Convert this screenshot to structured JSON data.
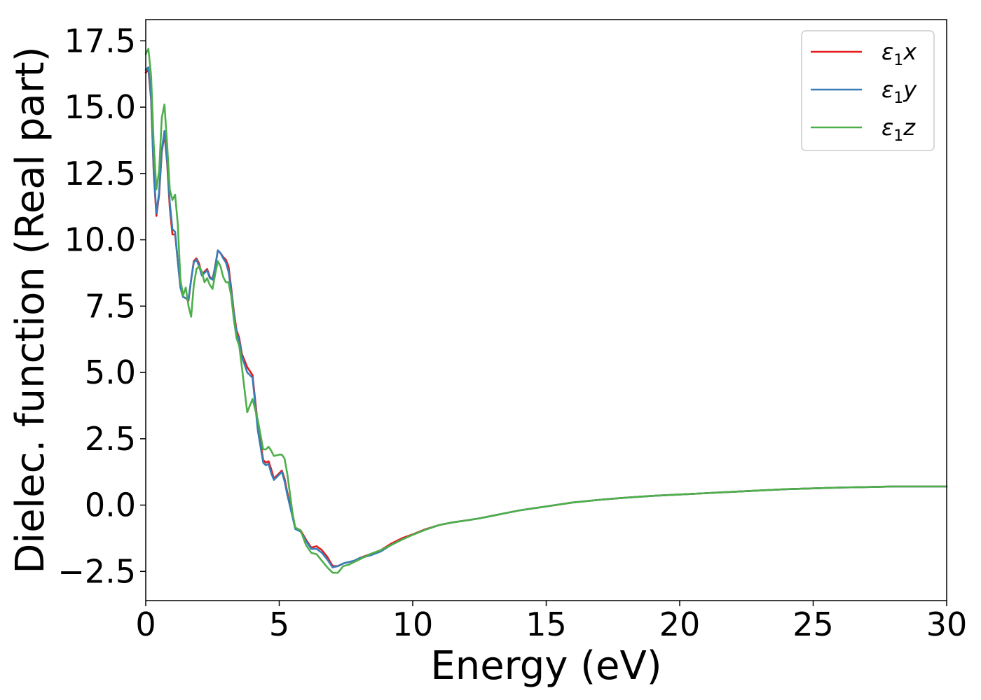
{
  "chart_data": {
    "type": "line",
    "title": "",
    "xlabel": "Energy (eV)",
    "ylabel": "Dielec. function (Real part)",
    "xlim": [
      0,
      30
    ],
    "ylim": [
      -3.6,
      18.3
    ],
    "xticks": [
      0,
      5,
      10,
      15,
      20,
      25,
      30
    ],
    "xtick_labels": [
      "0",
      "5",
      "10",
      "15",
      "20",
      "25",
      "30"
    ],
    "yticks": [
      -2.5,
      0,
      2.5,
      5,
      7.5,
      10,
      12.5,
      15,
      17.5
    ],
    "ytick_labels": [
      "−2.5",
      "0.0",
      "2.5",
      "5.0",
      "7.5",
      "10.0",
      "12.5",
      "15.0",
      "17.5"
    ],
    "grid": false,
    "legend_position": "top-right",
    "series": [
      {
        "name": "ε₁x",
        "label_main": "ε",
        "label_sub": "1",
        "label_tail": "x",
        "color": "#e41a1c",
        "x": [
          0,
          0.1,
          0.2,
          0.3,
          0.4,
          0.5,
          0.6,
          0.7,
          0.8,
          0.9,
          1.0,
          1.1,
          1.2,
          1.3,
          1.4,
          1.5,
          1.6,
          1.7,
          1.8,
          1.9,
          2.0,
          2.1,
          2.2,
          2.3,
          2.4,
          2.5,
          2.6,
          2.7,
          2.8,
          2.9,
          3.0,
          3.1,
          3.2,
          3.3,
          3.4,
          3.5,
          3.6,
          3.8,
          4.0,
          4.2,
          4.4,
          4.5,
          4.6,
          4.7,
          4.8,
          5.0,
          5.1,
          5.2,
          5.3,
          5.5,
          5.6,
          5.8,
          6.0,
          6.2,
          6.4,
          6.6,
          6.8,
          7.0,
          7.2,
          7.4,
          7.6,
          7.8,
          8.0,
          8.4,
          8.8,
          9.2,
          9.6,
          10.0,
          10.5,
          11.0,
          11.5,
          12.0,
          12.5,
          13.0,
          13.5,
          14.0,
          15.0,
          16.0,
          17.0,
          18.0,
          19.0,
          20.0,
          21.0,
          22.0,
          23.0,
          24.0,
          25.0,
          26.0,
          27.0,
          28.0,
          29.0,
          30.0
        ],
        "values": [
          16.3,
          16.4,
          15.3,
          12.5,
          10.9,
          11.7,
          13.3,
          14.0,
          12.9,
          11.2,
          10.2,
          10.2,
          9.2,
          8.2,
          7.85,
          7.8,
          7.7,
          8.5,
          9.2,
          9.3,
          9.1,
          8.7,
          8.8,
          8.9,
          8.6,
          8.5,
          9.0,
          9.6,
          9.5,
          9.35,
          9.25,
          9.0,
          8.2,
          7.3,
          6.6,
          6.3,
          5.7,
          5.2,
          4.9,
          3.0,
          1.7,
          1.6,
          1.65,
          1.35,
          1.0,
          1.2,
          1.3,
          1.0,
          0.5,
          -0.4,
          -0.85,
          -0.95,
          -1.3,
          -1.6,
          -1.55,
          -1.7,
          -1.95,
          -2.3,
          -2.3,
          -2.2,
          -2.15,
          -2.1,
          -2.0,
          -1.85,
          -1.7,
          -1.45,
          -1.25,
          -1.1,
          -0.9,
          -0.75,
          -0.65,
          -0.58,
          -0.5,
          -0.4,
          -0.3,
          -0.2,
          -0.05,
          0.1,
          0.2,
          0.28,
          0.35,
          0.4,
          0.45,
          0.5,
          0.55,
          0.6,
          0.63,
          0.66,
          0.68,
          0.7,
          0.7,
          0.7
        ]
      },
      {
        "name": "ε₁y",
        "label_main": "ε",
        "label_sub": "1",
        "label_tail": "y",
        "color": "#377eb8",
        "x": [
          0,
          0.1,
          0.2,
          0.3,
          0.4,
          0.5,
          0.6,
          0.7,
          0.8,
          0.9,
          1.0,
          1.1,
          1.2,
          1.3,
          1.4,
          1.5,
          1.6,
          1.7,
          1.8,
          1.9,
          2.0,
          2.1,
          2.2,
          2.3,
          2.4,
          2.5,
          2.6,
          2.7,
          2.8,
          2.9,
          3.0,
          3.1,
          3.2,
          3.3,
          3.4,
          3.5,
          3.6,
          3.8,
          4.0,
          4.2,
          4.4,
          4.5,
          4.6,
          4.7,
          4.8,
          5.0,
          5.1,
          5.2,
          5.3,
          5.5,
          5.6,
          5.8,
          6.0,
          6.2,
          6.4,
          6.6,
          6.8,
          7.0,
          7.2,
          7.4,
          7.6,
          7.8,
          8.0,
          8.4,
          8.8,
          9.2,
          9.6,
          10.0,
          10.5,
          11.0,
          11.5,
          12.0,
          12.5,
          13.0,
          13.5,
          14.0,
          15.0,
          16.0,
          17.0,
          18.0,
          19.0,
          20.0,
          21.0,
          22.0,
          23.0,
          24.0,
          25.0,
          26.0,
          27.0,
          28.0,
          29.0,
          30.0
        ],
        "values": [
          16.4,
          16.5,
          15.4,
          12.6,
          11.0,
          11.8,
          13.4,
          14.1,
          13.0,
          11.4,
          10.4,
          10.3,
          9.2,
          8.2,
          7.85,
          7.8,
          7.75,
          8.5,
          9.15,
          9.25,
          9.0,
          8.65,
          8.75,
          8.85,
          8.55,
          8.5,
          9.0,
          9.6,
          9.5,
          9.3,
          9.15,
          8.8,
          8.1,
          7.2,
          6.5,
          6.2,
          5.6,
          5.0,
          4.8,
          2.8,
          1.6,
          1.5,
          1.55,
          1.2,
          0.95,
          1.15,
          1.25,
          0.9,
          0.4,
          -0.45,
          -0.9,
          -1.0,
          -1.35,
          -1.65,
          -1.65,
          -1.8,
          -2.05,
          -2.35,
          -2.3,
          -2.2,
          -2.15,
          -2.1,
          -2.0,
          -1.9,
          -1.75,
          -1.5,
          -1.3,
          -1.12,
          -0.92,
          -0.75,
          -0.65,
          -0.58,
          -0.5,
          -0.4,
          -0.3,
          -0.2,
          -0.05,
          0.1,
          0.2,
          0.28,
          0.35,
          0.4,
          0.45,
          0.5,
          0.55,
          0.6,
          0.63,
          0.66,
          0.68,
          0.7,
          0.7,
          0.7
        ]
      },
      {
        "name": "ε₁z",
        "label_main": "ε",
        "label_sub": "1",
        "label_tail": "z",
        "color": "#4daf4a",
        "x": [
          0,
          0.1,
          0.2,
          0.3,
          0.4,
          0.5,
          0.6,
          0.7,
          0.8,
          0.9,
          1.0,
          1.1,
          1.2,
          1.3,
          1.4,
          1.5,
          1.6,
          1.7,
          1.8,
          1.9,
          2.0,
          2.1,
          2.2,
          2.3,
          2.4,
          2.5,
          2.6,
          2.7,
          2.8,
          2.9,
          3.0,
          3.1,
          3.2,
          3.3,
          3.4,
          3.5,
          3.6,
          3.8,
          4.0,
          4.2,
          4.4,
          4.5,
          4.6,
          4.7,
          4.8,
          5.0,
          5.1,
          5.2,
          5.3,
          5.5,
          5.6,
          5.8,
          6.0,
          6.2,
          6.4,
          6.6,
          6.8,
          7.0,
          7.2,
          7.4,
          7.6,
          7.8,
          8.0,
          8.4,
          8.8,
          9.2,
          9.6,
          10.0,
          10.5,
          11.0,
          11.5,
          12.0,
          12.5,
          13.0,
          13.5,
          14.0,
          15.0,
          16.0,
          17.0,
          18.0,
          19.0,
          20.0,
          21.0,
          22.0,
          23.0,
          24.0,
          25.0,
          26.0,
          27.0,
          28.0,
          29.0,
          30.0
        ],
        "values": [
          17.0,
          17.2,
          16.2,
          13.6,
          11.9,
          12.6,
          14.6,
          15.1,
          13.6,
          11.9,
          11.5,
          11.7,
          10.6,
          8.5,
          7.9,
          8.2,
          7.5,
          7.1,
          8.3,
          8.9,
          9.0,
          8.8,
          8.4,
          8.55,
          8.3,
          8.15,
          8.7,
          9.2,
          9.0,
          8.6,
          8.4,
          8.4,
          7.9,
          7.0,
          6.3,
          6.0,
          5.2,
          3.5,
          4.0,
          3.2,
          2.1,
          2.1,
          2.2,
          2.05,
          1.85,
          1.9,
          1.9,
          1.75,
          1.2,
          -0.3,
          -0.85,
          -0.95,
          -1.5,
          -1.8,
          -1.85,
          -2.1,
          -2.35,
          -2.55,
          -2.55,
          -2.3,
          -2.25,
          -2.15,
          -2.05,
          -1.85,
          -1.7,
          -1.5,
          -1.3,
          -1.12,
          -0.92,
          -0.75,
          -0.65,
          -0.58,
          -0.5,
          -0.4,
          -0.3,
          -0.2,
          -0.05,
          0.1,
          0.2,
          0.28,
          0.35,
          0.4,
          0.45,
          0.5,
          0.55,
          0.6,
          0.63,
          0.66,
          0.68,
          0.7,
          0.7,
          0.7
        ]
      }
    ]
  }
}
